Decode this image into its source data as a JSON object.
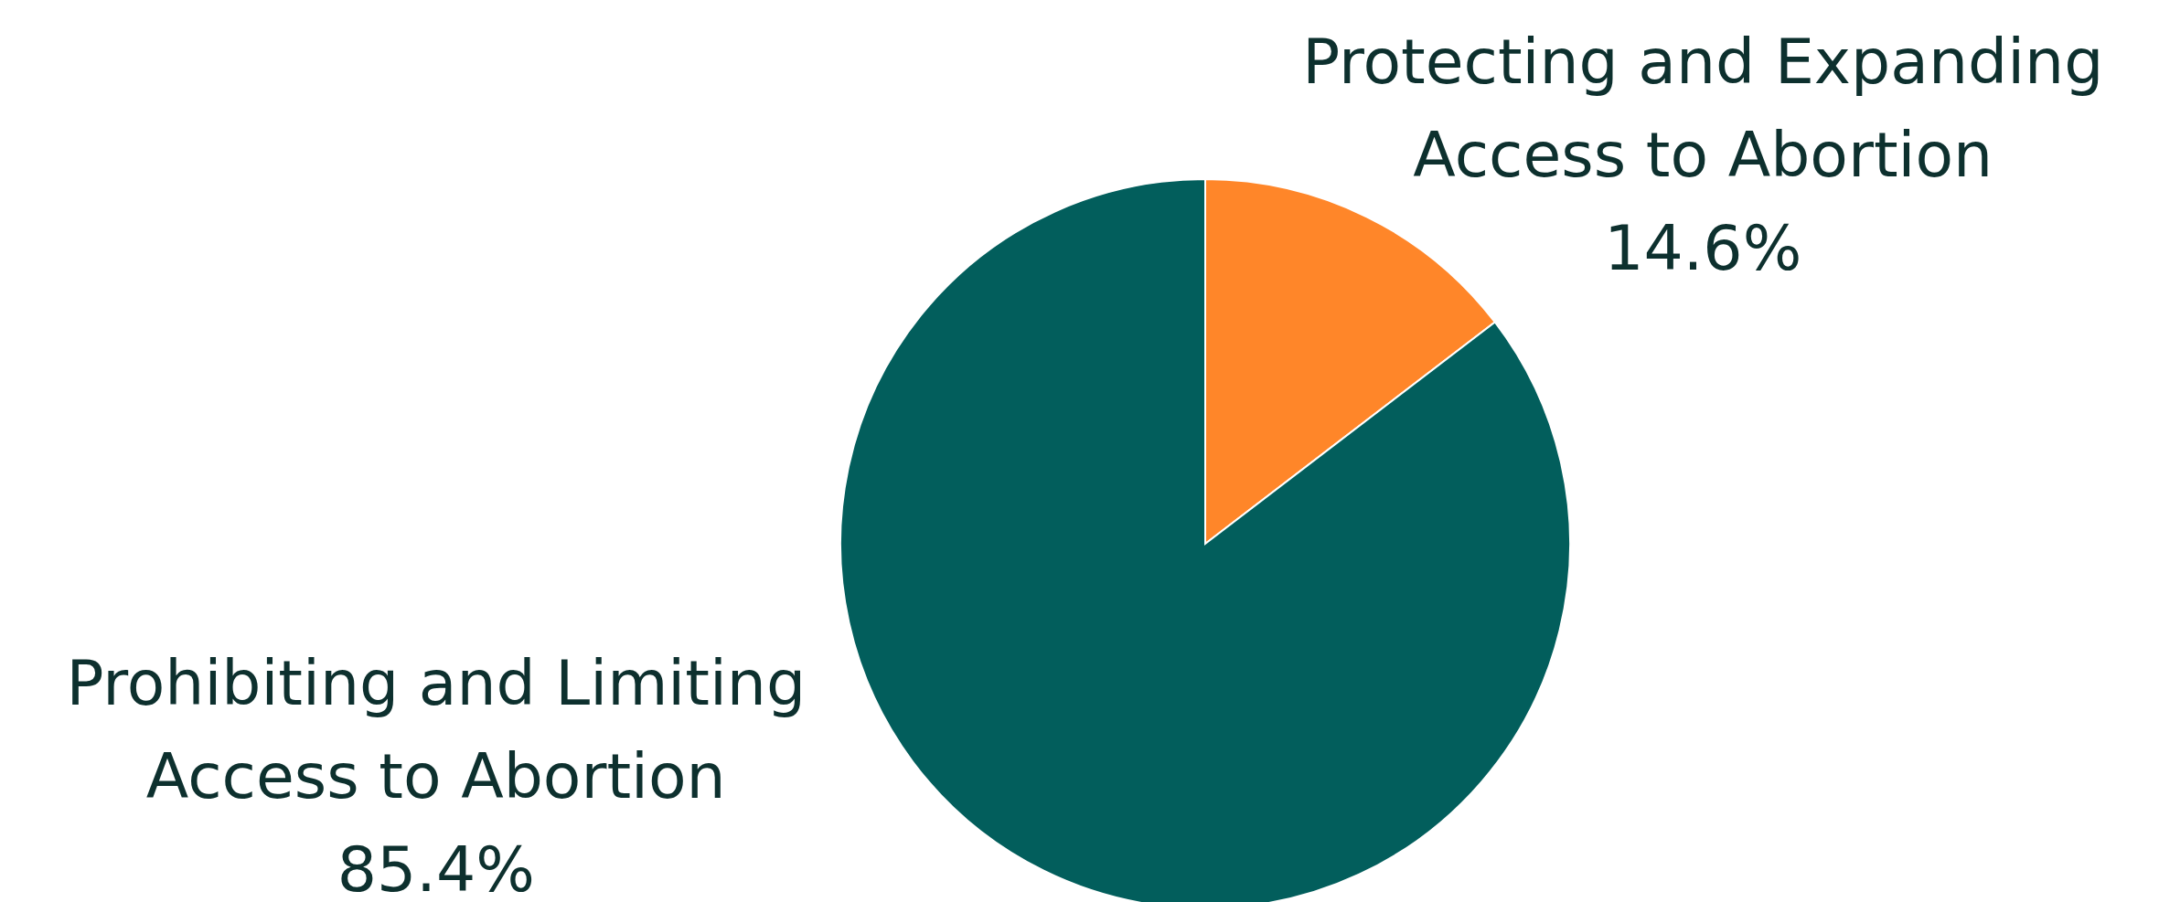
{
  "chart_data": {
    "type": "pie",
    "categories": [
      "Protecting and Expanding Access to Abortion",
      "Prohibiting and Limiting Access to Abortion"
    ],
    "values": [
      14.6,
      85.4
    ],
    "colors": [
      "#ff8629",
      "#025e5c"
    ],
    "value_labels": [
      "14.6%",
      "85.4%"
    ]
  }
}
